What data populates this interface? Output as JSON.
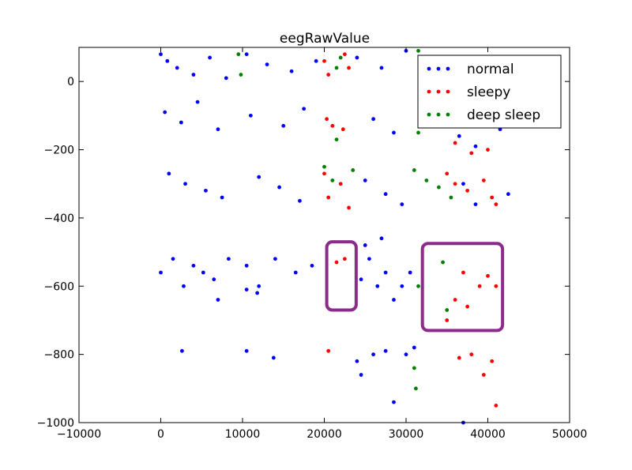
{
  "chart_data": {
    "type": "scatter",
    "title": "eegRawValue",
    "xlabel": "",
    "ylabel": "",
    "xlim": [
      -10000,
      50000
    ],
    "ylim": [
      -1000,
      100
    ],
    "xticks": [
      -10000,
      0,
      10000,
      20000,
      30000,
      40000,
      50000
    ],
    "xtick_labels": [
      "−10000",
      "0",
      "10000",
      "20000",
      "30000",
      "40000",
      "50000"
    ],
    "yticks": [
      0,
      -200,
      -400,
      -600,
      -800,
      -1000
    ],
    "ytick_labels": [
      "0",
      "−200",
      "−400",
      "−600",
      "−800",
      "−1000"
    ],
    "grid": false,
    "legend_position": "top-right",
    "series": [
      {
        "name": "normal",
        "color": "#0000ff",
        "points": [
          [
            0,
            80
          ],
          [
            800,
            60
          ],
          [
            2000,
            40
          ],
          [
            4000,
            20
          ],
          [
            6000,
            70
          ],
          [
            8000,
            10
          ],
          [
            10500,
            80
          ],
          [
            13000,
            50
          ],
          [
            16000,
            30
          ],
          [
            19000,
            60
          ],
          [
            24000,
            70
          ],
          [
            27000,
            40
          ],
          [
            30000,
            90
          ],
          [
            33000,
            20
          ],
          [
            38000,
            60
          ],
          [
            42000,
            30
          ],
          [
            500,
            -90
          ],
          [
            2500,
            -120
          ],
          [
            4500,
            -60
          ],
          [
            7000,
            -140
          ],
          [
            11000,
            -100
          ],
          [
            15000,
            -130
          ],
          [
            17500,
            -80
          ],
          [
            26000,
            -110
          ],
          [
            28500,
            -150
          ],
          [
            36500,
            -160
          ],
          [
            38500,
            -190
          ],
          [
            41500,
            -140
          ],
          [
            1000,
            -270
          ],
          [
            3000,
            -300
          ],
          [
            5500,
            -320
          ],
          [
            7500,
            -340
          ],
          [
            12000,
            -280
          ],
          [
            14500,
            -310
          ],
          [
            17000,
            -350
          ],
          [
            25000,
            -290
          ],
          [
            27500,
            -330
          ],
          [
            29500,
            -360
          ],
          [
            37000,
            -300
          ],
          [
            38500,
            -360
          ],
          [
            42500,
            -330
          ],
          [
            0,
            -560
          ],
          [
            1500,
            -520
          ],
          [
            2800,
            -600
          ],
          [
            4000,
            -540
          ],
          [
            5200,
            -560
          ],
          [
            6500,
            -580
          ],
          [
            8300,
            -520
          ],
          [
            10500,
            -540
          ],
          [
            12000,
            -600
          ],
          [
            14000,
            -520
          ],
          [
            16500,
            -560
          ],
          [
            18500,
            -540
          ],
          [
            24500,
            -580
          ],
          [
            25500,
            -520
          ],
          [
            26500,
            -600
          ],
          [
            27500,
            -560
          ],
          [
            28500,
            -640
          ],
          [
            29500,
            -600
          ],
          [
            30500,
            -560
          ],
          [
            25000,
            -480
          ],
          [
            27000,
            -460
          ],
          [
            7000,
            -640
          ],
          [
            10500,
            -610
          ],
          [
            11800,
            -620
          ],
          [
            2600,
            -790
          ],
          [
            10500,
            -790
          ],
          [
            13800,
            -810
          ],
          [
            24000,
            -820
          ],
          [
            24500,
            -860
          ],
          [
            26000,
            -800
          ],
          [
            27500,
            -790
          ],
          [
            28500,
            -940
          ],
          [
            30000,
            -800
          ],
          [
            31000,
            -780
          ],
          [
            37000,
            -1000
          ]
        ]
      },
      {
        "name": "sleepy",
        "color": "#ff0000",
        "points": [
          [
            20000,
            60
          ],
          [
            20500,
            20
          ],
          [
            22500,
            80
          ],
          [
            23000,
            40
          ],
          [
            20300,
            -110
          ],
          [
            22300,
            -140
          ],
          [
            21000,
            -130
          ],
          [
            20000,
            -270
          ],
          [
            20500,
            -340
          ],
          [
            22000,
            -300
          ],
          [
            23000,
            -370
          ],
          [
            35000,
            -270
          ],
          [
            36000,
            -300
          ],
          [
            37500,
            -320
          ],
          [
            39500,
            -290
          ],
          [
            40500,
            -340
          ],
          [
            41000,
            -360
          ],
          [
            36000,
            -180
          ],
          [
            40000,
            -200
          ],
          [
            38000,
            -210
          ],
          [
            21500,
            -530
          ],
          [
            22500,
            -520
          ],
          [
            37000,
            -560
          ],
          [
            36000,
            -640
          ],
          [
            39000,
            -600
          ],
          [
            40000,
            -570
          ],
          [
            41000,
            -600
          ],
          [
            35000,
            -700
          ],
          [
            37500,
            -660
          ],
          [
            20500,
            -790
          ],
          [
            36500,
            -810
          ],
          [
            38000,
            -800
          ],
          [
            39500,
            -860
          ],
          [
            40500,
            -820
          ],
          [
            41000,
            -950
          ]
        ]
      },
      {
        "name": "deep sleep",
        "color": "#008000",
        "points": [
          [
            9500,
            80
          ],
          [
            9800,
            20
          ],
          [
            21500,
            40
          ],
          [
            22000,
            70
          ],
          [
            31500,
            90
          ],
          [
            32500,
            60
          ],
          [
            21500,
            -170
          ],
          [
            31500,
            -150
          ],
          [
            20000,
            -250
          ],
          [
            21000,
            -290
          ],
          [
            23500,
            -260
          ],
          [
            31000,
            -260
          ],
          [
            32500,
            -290
          ],
          [
            34000,
            -310
          ],
          [
            35500,
            -340
          ],
          [
            31500,
            -600
          ],
          [
            34500,
            -530
          ],
          [
            35000,
            -670
          ],
          [
            31000,
            -840
          ],
          [
            31200,
            -900
          ]
        ]
      }
    ],
    "annotations": [
      {
        "shape": "rounded-rectangle",
        "color": "#8b2c8b",
        "x": [
          20300,
          23900
        ],
        "y": [
          -670,
          -470
        ]
      },
      {
        "shape": "rounded-rectangle",
        "color": "#8b2c8b",
        "x": [
          32000,
          41800
        ],
        "y": [
          -730,
          -475
        ]
      }
    ]
  }
}
